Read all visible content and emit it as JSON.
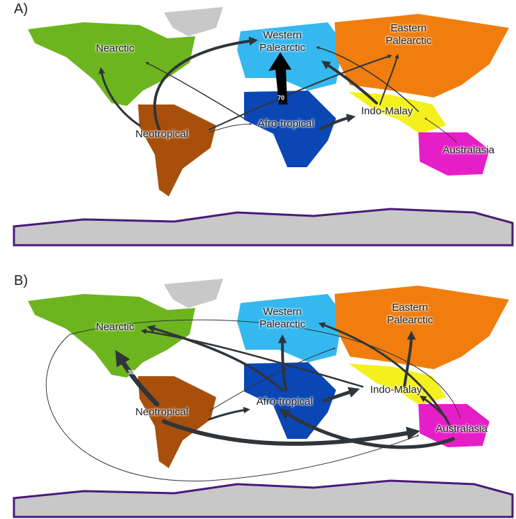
{
  "panels": [
    {
      "label": "A)",
      "regions": [
        "Nearctic",
        "Western Palearctic",
        "Eastern Palearctic",
        "Neotropical",
        "Afro-tropical",
        "Indo-Malay",
        "Australasia"
      ],
      "annotation": 70
    },
    {
      "label": "B)",
      "regions": [
        "Nearctic",
        "Western Palearctic",
        "Eastern Palearctic",
        "Neotropical",
        "Afro-tropical",
        "Indo-Malay",
        "Australasia"
      ],
      "annotation": 30
    }
  ]
}
